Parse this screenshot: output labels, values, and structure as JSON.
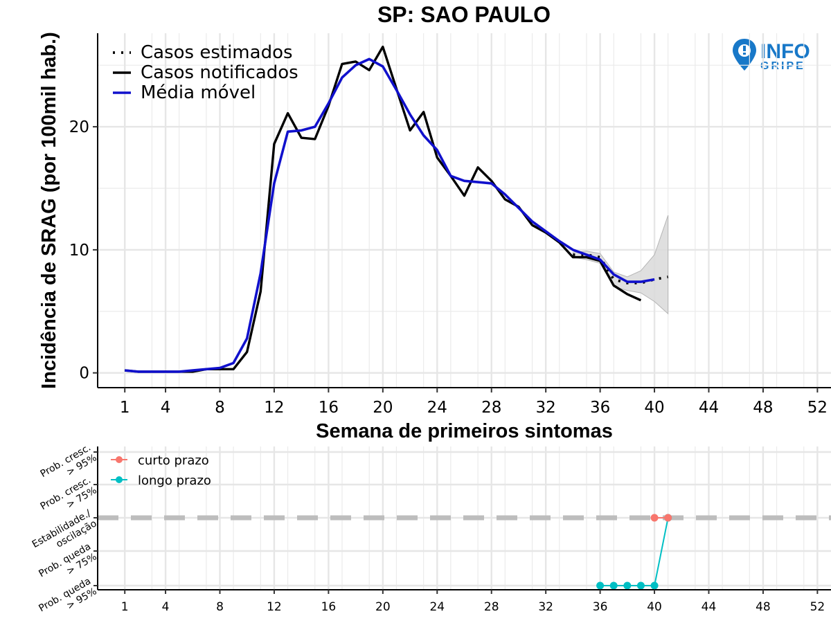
{
  "title": "SP: SAO PAULO",
  "logo": {
    "line1": "INFO",
    "line2": "GRIPE",
    "color": "#1878c8",
    "icon": "location-pin-icon"
  },
  "chart_data": [
    {
      "type": "line",
      "title": "SP: SAO PAULO",
      "xlabel": "Semana de primeiros sintomas",
      "ylabel": "Incidência de SRAG (por 100mil hab.)",
      "xlim": [
        -1,
        53
      ],
      "ylim": [
        -1.2,
        27.6
      ],
      "x_ticks": [
        1,
        4,
        8,
        12,
        16,
        20,
        24,
        28,
        32,
        36,
        40,
        44,
        48,
        52
      ],
      "y_ticks": [
        0,
        10,
        20
      ],
      "grid": true,
      "legend_position": "top-left",
      "legend": [
        "Casos estimados",
        "Casos notificados",
        "Média móvel"
      ],
      "series": [
        {
          "name": "Casos notificados",
          "style": "solid",
          "color": "#000000",
          "x": [
            1,
            2,
            3,
            4,
            5,
            6,
            7,
            8,
            9,
            10,
            11,
            12,
            13,
            14,
            15,
            16,
            17,
            18,
            19,
            20,
            21,
            22,
            23,
            24,
            25,
            26,
            27,
            28,
            29,
            30,
            31,
            32,
            33,
            34,
            35,
            36,
            37,
            38,
            39
          ],
          "y": [
            0.2,
            0.1,
            0.1,
            0.1,
            0.1,
            0.1,
            0.3,
            0.3,
            0.3,
            1.7,
            6.6,
            18.6,
            21.1,
            19.1,
            19.0,
            21.7,
            25.1,
            25.3,
            24.6,
            26.5,
            23.1,
            19.7,
            21.2,
            17.5,
            16.0,
            14.4,
            16.7,
            15.6,
            14.1,
            13.5,
            12.0,
            11.4,
            10.6,
            9.4,
            9.4,
            9.1,
            7.1,
            6.4,
            5.9
          ]
        },
        {
          "name": "Casos estimados",
          "style": "dotted",
          "color": "#000000",
          "x": [
            34,
            35,
            36,
            37,
            38,
            39,
            40,
            41
          ],
          "y": [
            9.6,
            9.6,
            9.4,
            7.6,
            7.3,
            7.3,
            7.6,
            7.8
          ]
        },
        {
          "name": "Média móvel",
          "style": "solid",
          "color": "#1010cc",
          "x": [
            1,
            2,
            3,
            4,
            5,
            6,
            7,
            8,
            9,
            10,
            11,
            12,
            13,
            14,
            15,
            16,
            17,
            18,
            19,
            20,
            21,
            22,
            23,
            24,
            25,
            26,
            27,
            28,
            29,
            30,
            31,
            32,
            33,
            34,
            35,
            36,
            37,
            38,
            39,
            40
          ],
          "y": [
            0.2,
            0.1,
            0.1,
            0.1,
            0.1,
            0.2,
            0.3,
            0.4,
            0.8,
            2.8,
            8.1,
            15.4,
            19.6,
            19.7,
            20.0,
            21.9,
            24.0,
            25.0,
            25.5,
            24.9,
            23.0,
            21.0,
            19.3,
            18.1,
            16.0,
            15.6,
            15.5,
            15.4,
            14.5,
            13.4,
            12.3,
            11.5,
            10.7,
            10.0,
            9.6,
            9.2,
            8.0,
            7.4,
            7.4,
            7.6
          ]
        }
      ],
      "uncertainty_band": {
        "color": "#d9d9d9",
        "x": [
          34,
          35,
          36,
          37,
          38,
          39,
          40,
          41
        ],
        "low": [
          9.4,
          9.2,
          8.9,
          7.0,
          6.7,
          6.5,
          5.8,
          4.8
        ],
        "high": [
          9.8,
          9.9,
          9.7,
          8.2,
          7.8,
          8.3,
          9.6,
          12.8
        ]
      }
    },
    {
      "type": "line",
      "xlim": [
        -1,
        53
      ],
      "x_ticks": [
        1,
        4,
        8,
        12,
        16,
        20,
        24,
        28,
        32,
        36,
        40,
        44,
        48,
        52
      ],
      "y_categories": [
        "Prob. queda > 95%",
        "Prob. queda > 75%",
        "Estabilidade./ oscilação",
        "Prob. cresc. > 75%",
        "Prob. cresc. > 95%"
      ],
      "y_category_lines": [
        [
          "Prob. queda",
          "> 95%"
        ],
        [
          "Prob. queda",
          "> 75%"
        ],
        [
          "Estabilidade./",
          "oscilação"
        ],
        [
          "Prob. cresc.",
          "> 75%"
        ],
        [
          "Prob. cresc.",
          "> 95%"
        ]
      ],
      "grid": true,
      "reference_line": {
        "category": "Estabilidade./ oscilação",
        "style": "dashed",
        "color": "#bdbdbd"
      },
      "legend_position": "top-left",
      "legend": [
        "curto prazo",
        "longo prazo"
      ],
      "series": [
        {
          "name": "curto prazo",
          "color": "#f8766d",
          "x": [
            40,
            41
          ],
          "y": [
            "Estabilidade./ oscilação",
            "Estabilidade./ oscilação"
          ]
        },
        {
          "name": "longo prazo",
          "color": "#00bfc4",
          "x": [
            36,
            37,
            38,
            39,
            40,
            41
          ],
          "y": [
            "Prob. queda > 95%",
            "Prob. queda > 95%",
            "Prob. queda > 95%",
            "Prob. queda > 95%",
            "Prob. queda > 95%",
            "Estabilidade./ oscilação"
          ]
        }
      ]
    }
  ]
}
